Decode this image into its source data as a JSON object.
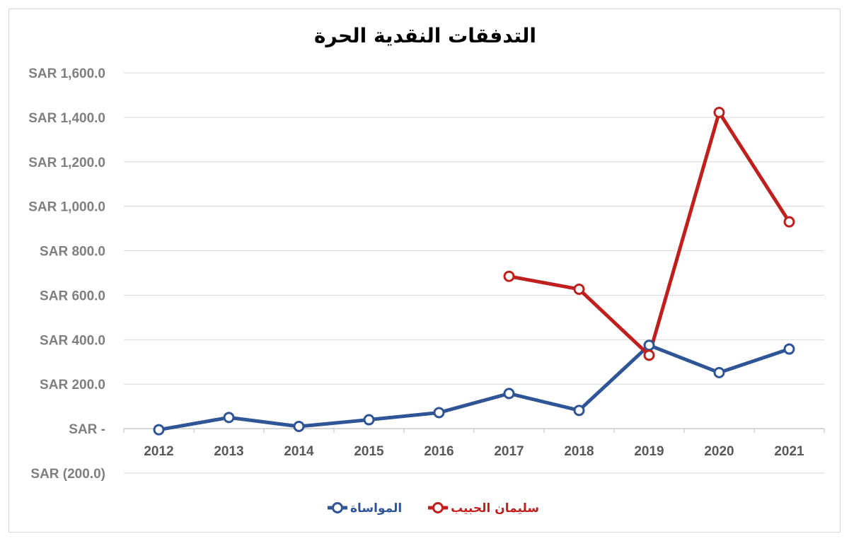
{
  "chart_data": {
    "type": "line",
    "title": "التدفقات النقدية الحرة",
    "xlabel": "",
    "ylabel": "",
    "categories": [
      "2012",
      "2013",
      "2014",
      "2015",
      "2016",
      "2017",
      "2018",
      "2019",
      "2020",
      "2021"
    ],
    "ylim": [
      -200,
      1600
    ],
    "yticks": [
      -200,
      0,
      200,
      400,
      600,
      800,
      1000,
      1200,
      1400,
      1600
    ],
    "ytick_labels": [
      "SAR (200.0)",
      "SAR -",
      "SAR 200.0",
      "SAR 400.0",
      "SAR 600.0",
      "SAR 800.0",
      "SAR 1,000.0",
      "SAR 1,200.0",
      "SAR 1,400.0",
      "SAR 1,600.0"
    ],
    "grid": true,
    "legend": "bottom",
    "series": [
      {
        "name": "المواساة",
        "color": "#2f5597",
        "values": [
          -5,
          50,
          10,
          40,
          72,
          158,
          82,
          375,
          252,
          358
        ]
      },
      {
        "name": "سليمان الحبيب",
        "color": "#c0201d",
        "values": [
          null,
          null,
          null,
          null,
          null,
          685,
          627,
          330,
          1422,
          930
        ]
      }
    ]
  }
}
